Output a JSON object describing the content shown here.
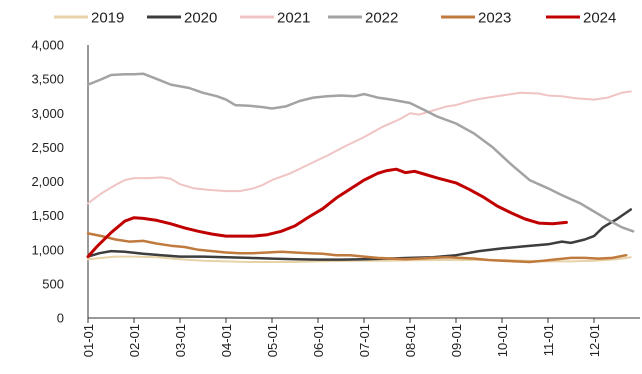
{
  "chart_data": {
    "type": "line",
    "title": "",
    "xlabel": "",
    "ylabel": "",
    "x_ticks": [
      "01-01",
      "02-01",
      "03-01",
      "04-01",
      "05-01",
      "06-01",
      "07-01",
      "08-01",
      "09-01",
      "10-01",
      "11-01",
      "12-01"
    ],
    "ylim": [
      0,
      4000
    ],
    "y_ticks": [
      "0",
      "500",
      "1,000",
      "1,500",
      "2,000",
      "2,500",
      "3,000",
      "3,500",
      "4,000"
    ],
    "grid": false,
    "legend_position": "top",
    "series": [
      {
        "name": "2019",
        "color": "#e8d3a8",
        "width": 2,
        "points": [
          [
            0,
            860
          ],
          [
            0.3,
            880
          ],
          [
            0.6,
            900
          ],
          [
            1,
            900
          ],
          [
            1.5,
            890
          ],
          [
            2,
            860
          ],
          [
            2.5,
            840
          ],
          [
            3,
            830
          ],
          [
            3.5,
            820
          ],
          [
            4,
            820
          ],
          [
            4.5,
            820
          ],
          [
            5,
            830
          ],
          [
            5.5,
            835
          ],
          [
            6,
            840
          ],
          [
            6.5,
            840
          ],
          [
            7,
            845
          ],
          [
            7.5,
            850
          ],
          [
            8,
            850
          ],
          [
            8.5,
            850
          ],
          [
            9,
            850
          ],
          [
            9.5,
            840
          ],
          [
            10,
            830
          ],
          [
            10.5,
            830
          ],
          [
            11,
            840
          ],
          [
            11.5,
            860
          ],
          [
            11.8,
            890
          ]
        ]
      },
      {
        "name": "2020",
        "color": "#3d3d3d",
        "width": 2.5,
        "points": [
          [
            0,
            900
          ],
          [
            0.25,
            950
          ],
          [
            0.5,
            980
          ],
          [
            0.8,
            970
          ],
          [
            1.2,
            940
          ],
          [
            1.6,
            920
          ],
          [
            2,
            900
          ],
          [
            2.5,
            900
          ],
          [
            3,
            890
          ],
          [
            3.5,
            880
          ],
          [
            4,
            870
          ],
          [
            4.5,
            860
          ],
          [
            5,
            855
          ],
          [
            5.5,
            855
          ],
          [
            6,
            860
          ],
          [
            6.5,
            870
          ],
          [
            7,
            880
          ],
          [
            7.5,
            890
          ],
          [
            8,
            920
          ],
          [
            8.5,
            980
          ],
          [
            9,
            1020
          ],
          [
            9.5,
            1050
          ],
          [
            10,
            1080
          ],
          [
            10.3,
            1120
          ],
          [
            10.5,
            1100
          ],
          [
            10.8,
            1150
          ],
          [
            11,
            1200
          ],
          [
            11.2,
            1330
          ],
          [
            11.5,
            1450
          ],
          [
            11.8,
            1590
          ]
        ]
      },
      {
        "name": "2021",
        "color": "#f0c4c4",
        "width": 2,
        "points": [
          [
            0,
            1680
          ],
          [
            0.3,
            1830
          ],
          [
            0.6,
            1950
          ],
          [
            0.8,
            2020
          ],
          [
            1,
            2050
          ],
          [
            1.3,
            2050
          ],
          [
            1.6,
            2060
          ],
          [
            1.8,
            2040
          ],
          [
            2,
            1960
          ],
          [
            2.3,
            1900
          ],
          [
            2.6,
            1880
          ],
          [
            3,
            1860
          ],
          [
            3.3,
            1860
          ],
          [
            3.6,
            1900
          ],
          [
            3.8,
            1950
          ],
          [
            4,
            2020
          ],
          [
            4.4,
            2120
          ],
          [
            4.8,
            2250
          ],
          [
            5.2,
            2380
          ],
          [
            5.6,
            2520
          ],
          [
            6,
            2650
          ],
          [
            6.4,
            2800
          ],
          [
            6.8,
            2920
          ],
          [
            7,
            3000
          ],
          [
            7.2,
            2980
          ],
          [
            7.5,
            3040
          ],
          [
            7.8,
            3100
          ],
          [
            8,
            3120
          ],
          [
            8.3,
            3180
          ],
          [
            8.6,
            3220
          ],
          [
            9,
            3260
          ],
          [
            9.4,
            3300
          ],
          [
            9.8,
            3290
          ],
          [
            10,
            3260
          ],
          [
            10.3,
            3250
          ],
          [
            10.6,
            3220
          ],
          [
            11,
            3200
          ],
          [
            11.3,
            3230
          ],
          [
            11.6,
            3300
          ],
          [
            11.8,
            3320
          ]
        ]
      },
      {
        "name": "2022",
        "color": "#a3a3a3",
        "width": 2.5,
        "points": [
          [
            0,
            3420
          ],
          [
            0.3,
            3500
          ],
          [
            0.5,
            3560
          ],
          [
            0.8,
            3570
          ],
          [
            1,
            3570
          ],
          [
            1.2,
            3580
          ],
          [
            1.5,
            3500
          ],
          [
            1.8,
            3420
          ],
          [
            2.2,
            3370
          ],
          [
            2.5,
            3300
          ],
          [
            2.8,
            3250
          ],
          [
            3,
            3200
          ],
          [
            3.2,
            3120
          ],
          [
            3.5,
            3110
          ],
          [
            3.8,
            3090
          ],
          [
            4,
            3070
          ],
          [
            4.3,
            3100
          ],
          [
            4.6,
            3180
          ],
          [
            4.9,
            3230
          ],
          [
            5.2,
            3250
          ],
          [
            5.5,
            3260
          ],
          [
            5.8,
            3250
          ],
          [
            6,
            3280
          ],
          [
            6.3,
            3230
          ],
          [
            6.6,
            3200
          ],
          [
            7,
            3150
          ],
          [
            7.3,
            3050
          ],
          [
            7.6,
            2950
          ],
          [
            8,
            2850
          ],
          [
            8.4,
            2700
          ],
          [
            8.8,
            2500
          ],
          [
            9.2,
            2250
          ],
          [
            9.6,
            2020
          ],
          [
            10,
            1900
          ],
          [
            10.3,
            1800
          ],
          [
            10.7,
            1680
          ],
          [
            11,
            1560
          ],
          [
            11.3,
            1440
          ],
          [
            11.6,
            1330
          ],
          [
            11.85,
            1270
          ]
        ]
      },
      {
        "name": "2023",
        "color": "#c07a3e",
        "width": 2.5,
        "points": [
          [
            0,
            1240
          ],
          [
            0.3,
            1200
          ],
          [
            0.6,
            1150
          ],
          [
            0.9,
            1120
          ],
          [
            1.2,
            1130
          ],
          [
            1.5,
            1090
          ],
          [
            1.8,
            1060
          ],
          [
            2.1,
            1040
          ],
          [
            2.4,
            1000
          ],
          [
            2.7,
            980
          ],
          [
            3,
            960
          ],
          [
            3.3,
            950
          ],
          [
            3.6,
            950
          ],
          [
            3.9,
            960
          ],
          [
            4.2,
            970
          ],
          [
            4.5,
            960
          ],
          [
            4.8,
            950
          ],
          [
            5.1,
            940
          ],
          [
            5.4,
            920
          ],
          [
            5.7,
            920
          ],
          [
            6,
            900
          ],
          [
            6.3,
            880
          ],
          [
            6.6,
            870
          ],
          [
            6.9,
            860
          ],
          [
            7.2,
            870
          ],
          [
            7.5,
            880
          ],
          [
            7.8,
            890
          ],
          [
            8.1,
            880
          ],
          [
            8.4,
            870
          ],
          [
            8.7,
            850
          ],
          [
            9,
            840
          ],
          [
            9.3,
            830
          ],
          [
            9.6,
            820
          ],
          [
            9.9,
            840
          ],
          [
            10.2,
            860
          ],
          [
            10.5,
            880
          ],
          [
            10.8,
            880
          ],
          [
            11.1,
            870
          ],
          [
            11.4,
            880
          ],
          [
            11.7,
            920
          ]
        ]
      },
      {
        "name": "2024",
        "color": "#c00000",
        "width": 3,
        "points": [
          [
            0,
            900
          ],
          [
            0.2,
            1050
          ],
          [
            0.5,
            1250
          ],
          [
            0.8,
            1420
          ],
          [
            1,
            1470
          ],
          [
            1.2,
            1460
          ],
          [
            1.5,
            1430
          ],
          [
            1.8,
            1380
          ],
          [
            2.1,
            1320
          ],
          [
            2.4,
            1270
          ],
          [
            2.7,
            1230
          ],
          [
            3,
            1200
          ],
          [
            3.3,
            1200
          ],
          [
            3.6,
            1200
          ],
          [
            3.9,
            1220
          ],
          [
            4.2,
            1270
          ],
          [
            4.5,
            1350
          ],
          [
            4.8,
            1480
          ],
          [
            5.1,
            1600
          ],
          [
            5.4,
            1760
          ],
          [
            5.7,
            1890
          ],
          [
            6,
            2020
          ],
          [
            6.3,
            2120
          ],
          [
            6.5,
            2160
          ],
          [
            6.7,
            2180
          ],
          [
            6.9,
            2130
          ],
          [
            7.1,
            2150
          ],
          [
            7.3,
            2110
          ],
          [
            7.6,
            2050
          ],
          [
            8,
            1980
          ],
          [
            8.3,
            1880
          ],
          [
            8.6,
            1770
          ],
          [
            8.9,
            1640
          ],
          [
            9.2,
            1540
          ],
          [
            9.5,
            1450
          ],
          [
            9.8,
            1390
          ],
          [
            10.1,
            1380
          ],
          [
            10.4,
            1400
          ]
        ]
      }
    ]
  }
}
